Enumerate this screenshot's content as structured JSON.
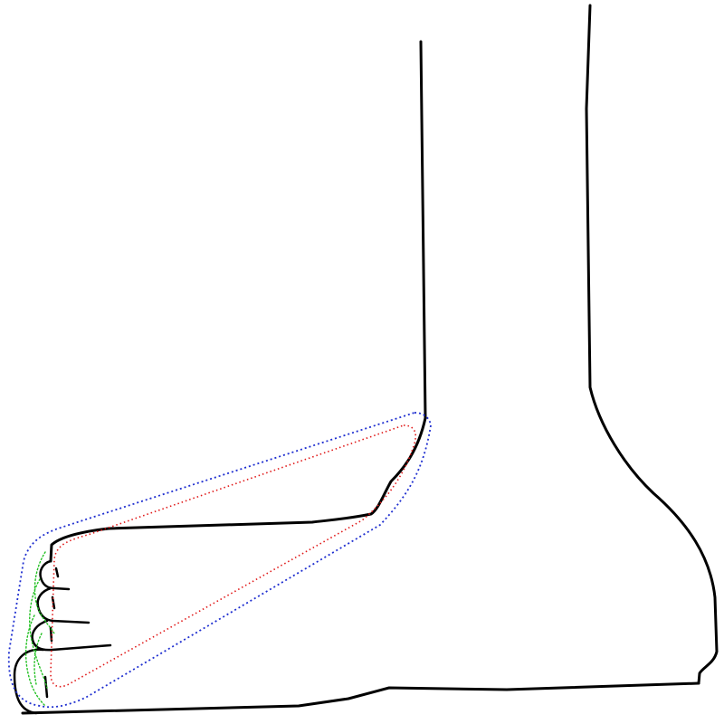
{
  "colors": {
    "outline": "#000000",
    "outer_contour": "#1f2fd0",
    "inner_contour": "#e01818",
    "toe_contour": "#22c022",
    "background": "#ffffff"
  }
}
